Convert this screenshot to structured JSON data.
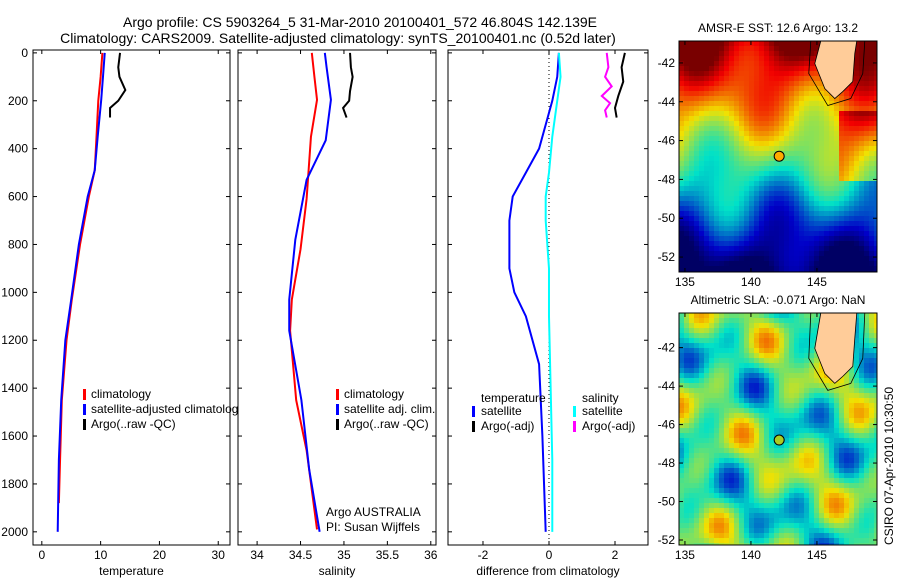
{
  "title_line1": "Argo profile: CS 5903264_5 31-Mar-2010 20100401_572 46.804S 142.139E",
  "title_line2": "Climatology: CARS2009. Satellite-adjusted climatology: synTS_20100401.nc (0.52d later)",
  "credit": "CSIRO 07-Apr-2010 10:30:50",
  "colors": {
    "climatology": "#ff0000",
    "satellite": "#0000ff",
    "argo": "#000000",
    "sal_satellite": "#00ffff",
    "sal_argo": "#ff00ff"
  },
  "chart_data": [
    {
      "type": "line",
      "xlabel": "temperature",
      "xlim": [
        -1.5,
        32
      ],
      "ylim": [
        2055,
        -12
      ],
      "xticks": [
        "0",
        "10",
        "20",
        "30"
      ],
      "xtick_values": [
        0,
        10,
        20,
        30
      ],
      "yticks": [
        "0",
        "200",
        "400",
        "600",
        "800",
        "1000",
        "1200",
        "1400",
        "1600",
        "1800",
        "2000"
      ],
      "ytick_values": [
        0,
        200,
        400,
        600,
        800,
        1000,
        1200,
        1400,
        1600,
        1800,
        2000
      ],
      "legend": [
        "climatology",
        "satellite-adjusted climatology",
        "Argo(..raw -QC)"
      ],
      "series": [
        {
          "name": "climatology",
          "color": "#ff0000",
          "x": [
            10.3,
            10.0,
            9.6,
            9.3,
            9.0,
            8.0,
            6.5,
            5.1,
            4.2,
            3.4,
            3.1,
            2.9
          ],
          "y": [
            0,
            100,
            200,
            350,
            490,
            600,
            800,
            1030,
            1200,
            1450,
            1700,
            1880
          ]
        },
        {
          "name": "satellite-adjusted climatology",
          "color": "#0000ff",
          "x": [
            10.7,
            10.4,
            10.1,
            9.5,
            9.0,
            7.8,
            6.3,
            5.0,
            4.0,
            3.3,
            2.9,
            2.7
          ],
          "y": [
            0,
            100,
            196,
            350,
            490,
            600,
            800,
            1030,
            1200,
            1450,
            1700,
            2000
          ]
        },
        {
          "name": "Argo(..raw -QC)",
          "color": "#000000",
          "x": [
            13.3,
            13.0,
            13.2,
            14.2,
            13.0,
            11.6,
            11.6
          ],
          "y": [
            0,
            60,
            100,
            155,
            200,
            230,
            270
          ]
        }
      ]
    },
    {
      "type": "line",
      "xlabel": "salinity",
      "xlim": [
        33.78,
        36.06
      ],
      "ylim": [
        2055,
        -12
      ],
      "xticks": [
        "34",
        "34.5",
        "35",
        "35.5",
        "36"
      ],
      "xtick_values": [
        34,
        34.5,
        35,
        35.5,
        36
      ],
      "legend": [
        "climatology",
        "satellite adj. clim.",
        "Argo(..raw -QC)"
      ],
      "annotation": [
        "Argo AUSTRALIA",
        "PI: Susan Wijffels"
      ],
      "series": [
        {
          "name": "climatology",
          "color": "#ff0000",
          "x": [
            34.63,
            34.66,
            34.69,
            34.62,
            34.57,
            34.5,
            34.4,
            34.38,
            34.45,
            34.57,
            34.69
          ],
          "y": [
            0,
            100,
            196,
            350,
            610,
            820,
            1030,
            1160,
            1450,
            1660,
            1990
          ]
        },
        {
          "name": "satellite adj. clim.",
          "color": "#0000ff",
          "x": [
            34.78,
            34.8,
            34.85,
            34.79,
            34.57,
            34.44,
            34.37,
            34.37,
            34.51,
            34.6,
            34.72
          ],
          "y": [
            0,
            60,
            196,
            365,
            530,
            780,
            1030,
            1160,
            1450,
            1740,
            2000
          ]
        },
        {
          "name": "Argo(..raw -QC)",
          "color": "#000000",
          "x": [
            35.07,
            35.08,
            35.1,
            35.07,
            35.06,
            34.99,
            35.03
          ],
          "y": [
            0,
            60,
            100,
            160,
            200,
            230,
            270
          ]
        }
      ]
    },
    {
      "type": "line",
      "xlabel": "difference from climatology",
      "xlim": [
        -3.06,
        3.0
      ],
      "ylim": [
        2055,
        -12
      ],
      "xticks": [
        "-2",
        "0",
        "2"
      ],
      "xtick_values": [
        -2,
        0,
        2
      ],
      "legend_temperature_title": "temperature",
      "legend_salinity_title": "salinity",
      "legend": [
        "satellite",
        "Argo(-adj)",
        "satellite",
        "Argo(-adj)"
      ],
      "series": [
        {
          "name": "temperature satellite",
          "color": "#0000ff",
          "x": [
            0.3,
            0.25,
            0.1,
            -0.1,
            -0.3,
            -0.7,
            -1.1,
            -1.2,
            -1.2,
            -1.05,
            -0.7,
            -0.3,
            -0.2,
            -0.15,
            -0.1
          ],
          "y": [
            0,
            100,
            200,
            300,
            400,
            500,
            600,
            700,
            900,
            1000,
            1100,
            1300,
            1600,
            1800,
            2000
          ]
        },
        {
          "name": "temperature Argo(-adj)",
          "color": "#000000",
          "x": [
            2.3,
            2.2,
            2.25,
            2.1,
            2.0,
            2.05
          ],
          "y": [
            0,
            60,
            120,
            180,
            230,
            270
          ]
        },
        {
          "name": "salinity satellite",
          "color": "#00ffff",
          "x": [
            0.3,
            0.35,
            0.25,
            0.1,
            0.0,
            -0.1,
            -0.1,
            0.0,
            0.0,
            0.05,
            0.1,
            0.1
          ],
          "y": [
            0,
            100,
            200,
            350,
            500,
            600,
            700,
            900,
            1100,
            1400,
            1700,
            2000
          ]
        },
        {
          "name": "salinity Argo(-adj)",
          "color": "#ff00ff",
          "x": [
            1.75,
            1.8,
            1.7,
            1.9,
            1.6,
            1.85,
            1.7,
            1.75
          ],
          "y": [
            0,
            60,
            100,
            140,
            180,
            210,
            240,
            270
          ]
        }
      ]
    },
    {
      "type": "heatmap",
      "title": "AMSR-E SST: 12.6 Argo: 13.2",
      "xlim": [
        134.55,
        149.55
      ],
      "ylim": [
        -52.77,
        -40.87
      ],
      "xticks": [
        "135",
        "140",
        "145"
      ],
      "xtick_values": [
        135,
        140,
        145
      ],
      "yticks": [
        "-42",
        "-44",
        "-46",
        "-48",
        "-50",
        "-52"
      ],
      "ytick_values": [
        -42,
        -44,
        -46,
        -48,
        -50,
        -52
      ],
      "argo_position": {
        "lon": 142.139,
        "lat": -46.804
      }
    },
    {
      "type": "heatmap",
      "title": "Altimetric SLA: -0.071 Argo: NaN",
      "xlim": [
        134.55,
        149.55
      ],
      "ylim": [
        -52.26,
        -40.2
      ],
      "xticks": [
        "135",
        "140",
        "145"
      ],
      "xtick_values": [
        135,
        140,
        145
      ],
      "yticks": [
        "-42",
        "-44",
        "-46",
        "-48",
        "-50",
        "-52"
      ],
      "ytick_values": [
        -42,
        -44,
        -46,
        -48,
        -50,
        -52
      ],
      "argo_position": {
        "lon": 142.139,
        "lat": -46.804
      }
    }
  ]
}
